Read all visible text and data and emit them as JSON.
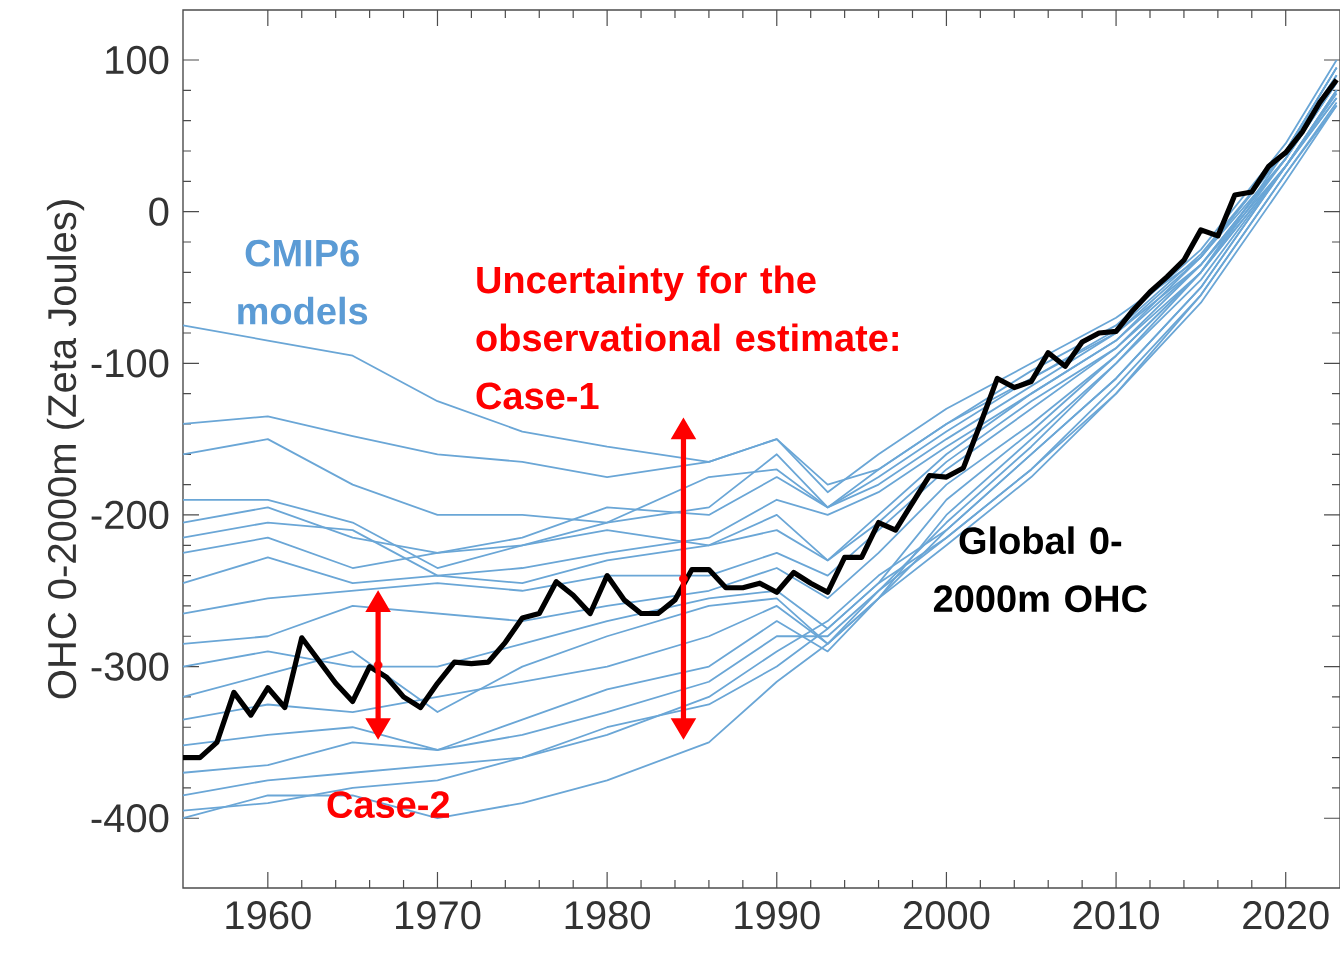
{
  "chart_data": {
    "type": "line",
    "ylabel": "OHC 0-2000m (Zeta Joules)",
    "xlim": [
      1955,
      2023.2
    ],
    "ylim": [
      -446,
      133
    ],
    "xticks": [
      1960,
      1970,
      1980,
      1990,
      2000,
      2010,
      2020
    ],
    "yticks": [
      -400,
      -300,
      -200,
      -100,
      0,
      100
    ],
    "x": [
      1955,
      1960,
      1965,
      1970,
      1975,
      1980,
      1986,
      1990,
      1993,
      1996,
      2000,
      2005,
      2010,
      2015,
      2020,
      2023
    ],
    "series": [
      {
        "color": "#6aa6d6",
        "values": [
          -75,
          -85,
          -95,
          -125,
          -145,
          -155,
          -165,
          -150,
          -185,
          -160,
          -130,
          -100,
          -70,
          -30,
          40,
          95
        ]
      },
      {
        "color": "#6aa6d6",
        "values": [
          -140,
          -135,
          -148,
          -160,
          -165,
          -175,
          -165,
          -150,
          -180,
          -170,
          -140,
          -105,
          -75,
          -25,
          45,
          100
        ]
      },
      {
        "color": "#6aa6d6",
        "values": [
          -160,
          -150,
          -180,
          -200,
          -200,
          -205,
          -195,
          -160,
          -195,
          -170,
          -140,
          -110,
          -78,
          -28,
          40,
          95
        ]
      },
      {
        "color": "#6aa6d6",
        "values": [
          -190,
          -190,
          -205,
          -235,
          -220,
          -205,
          -175,
          -170,
          -195,
          -175,
          -145,
          -110,
          -80,
          -30,
          35,
          85
        ]
      },
      {
        "color": "#6aa6d6",
        "values": [
          -205,
          -195,
          -215,
          -225,
          -215,
          -195,
          -200,
          -175,
          -195,
          -180,
          -150,
          -115,
          -80,
          -35,
          30,
          80
        ]
      },
      {
        "color": "#6aa6d6",
        "values": [
          -215,
          -205,
          -210,
          -240,
          -235,
          -225,
          -215,
          -190,
          -200,
          -185,
          -155,
          -120,
          -85,
          -35,
          35,
          90
        ]
      },
      {
        "color": "#6aa6d6",
        "values": [
          -225,
          -215,
          -235,
          -225,
          -220,
          -210,
          -220,
          -200,
          -230,
          -200,
          -160,
          -120,
          -85,
          -30,
          40,
          95
        ]
      },
      {
        "color": "#6aa6d6",
        "values": [
          -245,
          -228,
          -245,
          -240,
          -245,
          -230,
          -220,
          -210,
          -230,
          -205,
          -165,
          -125,
          -90,
          -35,
          35,
          85
        ]
      },
      {
        "color": "#6aa6d6",
        "values": [
          -265,
          -255,
          -250,
          -245,
          -250,
          -240,
          -240,
          -225,
          -240,
          -210,
          -170,
          -130,
          -90,
          -40,
          30,
          80
        ]
      },
      {
        "color": "#6aa6d6",
        "values": [
          -285,
          -280,
          -260,
          -265,
          -270,
          -260,
          -250,
          -235,
          -255,
          -225,
          -180,
          -140,
          -95,
          -40,
          30,
          75
        ]
      },
      {
        "color": "#6aa6d6",
        "values": [
          -300,
          -290,
          -300,
          -300,
          -285,
          -270,
          -255,
          -250,
          -275,
          -245,
          -190,
          -145,
          -95,
          -40,
          35,
          85
        ]
      },
      {
        "color": "#6aa6d6",
        "values": [
          -320,
          -305,
          -290,
          -330,
          -300,
          -280,
          -260,
          -255,
          -285,
          -255,
          -200,
          -150,
          -100,
          -45,
          30,
          80
        ]
      },
      {
        "color": "#6aa6d6",
        "values": [
          -335,
          -325,
          -330,
          -320,
          -310,
          -300,
          -280,
          -260,
          -285,
          -250,
          -205,
          -155,
          -100,
          -40,
          40,
          90
        ]
      },
      {
        "color": "#6aa6d6",
        "values": [
          -352,
          -345,
          -340,
          -355,
          -335,
          -315,
          -300,
          -270,
          -290,
          -255,
          -210,
          -160,
          -110,
          -50,
          30,
          75
        ]
      },
      {
        "color": "#6aa6d6",
        "values": [
          -370,
          -365,
          -350,
          -355,
          -345,
          -330,
          -310,
          -280,
          -280,
          -250,
          -215,
          -170,
          -115,
          -55,
          25,
          70
        ]
      },
      {
        "color": "#6aa6d6",
        "values": [
          -385,
          -375,
          -370,
          -365,
          -360,
          -345,
          -320,
          -290,
          -270,
          -240,
          -210,
          -160,
          -110,
          -50,
          30,
          78
        ]
      },
      {
        "color": "#6aa6d6",
        "values": [
          -395,
          -390,
          -380,
          -375,
          -360,
          -340,
          -325,
          -300,
          -275,
          -245,
          -215,
          -170,
          -120,
          -55,
          25,
          72
        ]
      },
      {
        "color": "#6aa6d6",
        "values": [
          -400,
          -385,
          -385,
          -400,
          -390,
          -375,
          -350,
          -310,
          -285,
          -255,
          -220,
          -175,
          -120,
          -60,
          20,
          70
        ]
      },
      {
        "color": "#000000",
        "x": [
          1955,
          1956,
          1957,
          1958,
          1959,
          1960,
          1961,
          1962,
          1963,
          1964,
          1965,
          1966,
          1967,
          1968,
          1969,
          1970,
          1971,
          1972,
          1973,
          1974,
          1975,
          1976,
          1977,
          1978,
          1979,
          1980,
          1981,
          1982,
          1983,
          1984,
          1985,
          1986,
          1987,
          1988,
          1989,
          1990,
          1991,
          1992,
          1993,
          1994,
          1995,
          1996,
          1997,
          1998,
          1999,
          2000,
          2001,
          2002,
          2003,
          2004,
          2005,
          2006,
          2007,
          2008,
          2009,
          2010,
          2011,
          2012,
          2013,
          2014,
          2015,
          2016,
          2017,
          2018,
          2019,
          2020,
          2021,
          2022,
          2023
        ],
        "values": [
          -360,
          -360,
          -350,
          -317,
          -332,
          -314,
          -327,
          -281,
          -296,
          -311,
          -323,
          -300,
          -307,
          -320,
          -327,
          -311,
          -297,
          -298,
          -297,
          -284,
          -268,
          -265,
          -244,
          -253,
          -265,
          -240,
          -256,
          -265,
          -265,
          -256,
          -236,
          -236,
          -248,
          -248,
          -245,
          -251,
          -238,
          -245,
          -251,
          -228,
          -228,
          -205,
          -210,
          -192,
          -174,
          -175,
          -169,
          -140,
          -110,
          -116,
          -112,
          -93,
          -102,
          -86,
          -80,
          -79,
          -65,
          -53,
          -43,
          -32,
          -12,
          -16,
          11,
          13,
          30,
          39,
          53,
          72,
          87
        ]
      },
      {
        "type": "scatter",
        "color": "#ff0000",
        "x": [
          1966.5
        ],
        "values": [
          -299
        ],
        "errors": [
          [
            -334,
            -264
          ]
        ]
      },
      {
        "type": "scatter",
        "color": "#ff0000",
        "x": [
          1984.5
        ],
        "values": [
          -242
        ],
        "errors": [
          [
            -334,
            -150
          ]
        ]
      }
    ],
    "annotations": [
      "CMIP6 models",
      "Uncertainty for the observational estimate: Case-1",
      "Global 0-2000m OHC",
      {
        "text": "Case-2",
        "x": 1967.1,
        "y": -391
      }
    ]
  }
}
